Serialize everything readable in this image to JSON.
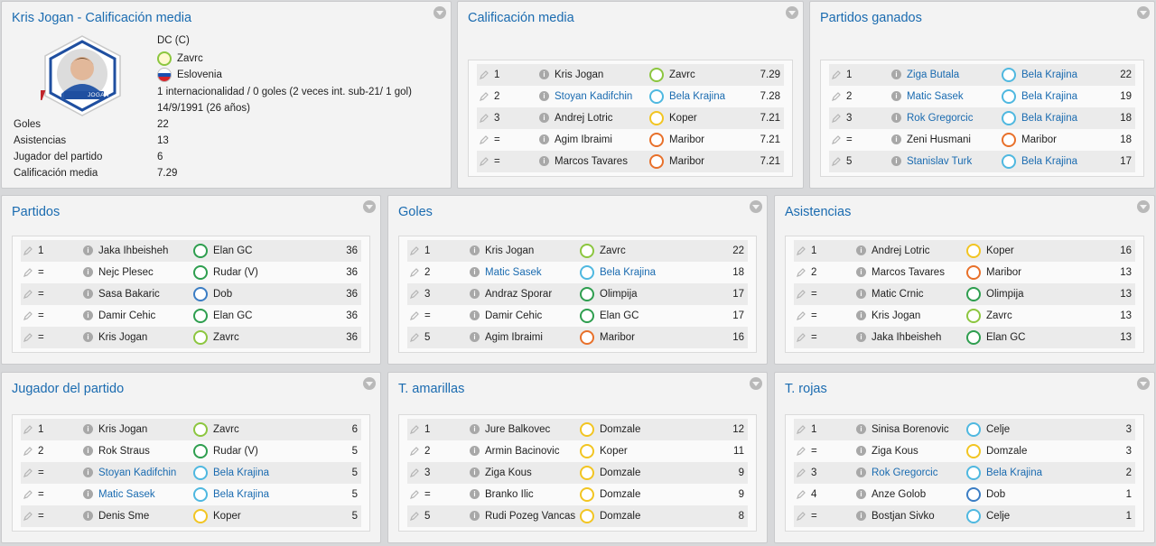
{
  "profile": {
    "title": "Kris Jogan - Calificación media",
    "card_name": "JOGAN",
    "position": "DC (C)",
    "club": "Zavrc",
    "club_color": "#8cc63f",
    "nationality": "Eslovenia",
    "caps": "1 internacionalidad / 0 goles (2 veces int. sub-21/ 1 gol)",
    "birth": "14/9/1991 (26 años)",
    "stats": [
      {
        "label": "Goles",
        "value": "22"
      },
      {
        "label": "Asistencias",
        "value": "13"
      },
      {
        "label": "Jugador del partido",
        "value": "6"
      },
      {
        "label": "Calificación media",
        "value": "7.29"
      }
    ]
  },
  "panels": [
    {
      "title": "Calificación media",
      "rows": [
        {
          "rank": "1",
          "player": "Kris Jogan",
          "club": "Zavrc",
          "value": "7.29",
          "link": false,
          "color": "#8cc63f"
        },
        {
          "rank": "2",
          "player": "Stoyan Kadifchin",
          "club": "Bela Krajina",
          "value": "7.28",
          "link": true,
          "color": "#4fb8e0"
        },
        {
          "rank": "3",
          "player": "Andrej Lotric",
          "club": "Koper",
          "value": "7.21",
          "link": false,
          "color": "#f2c522"
        },
        {
          "rank": "=",
          "player": "Agim Ibraimi",
          "club": "Maribor",
          "value": "7.21",
          "link": false,
          "color": "#e8702a"
        },
        {
          "rank": "=",
          "player": "Marcos Tavares",
          "club": "Maribor",
          "value": "7.21",
          "link": false,
          "color": "#e8702a"
        }
      ]
    },
    {
      "title": "Partidos ganados",
      "rows": [
        {
          "rank": "1",
          "player": "Ziga Butala",
          "club": "Bela Krajina",
          "value": "22",
          "link": true,
          "color": "#4fb8e0"
        },
        {
          "rank": "2",
          "player": "Matic Sasek",
          "club": "Bela Krajina",
          "value": "19",
          "link": true,
          "color": "#4fb8e0"
        },
        {
          "rank": "3",
          "player": "Rok Gregorcic",
          "club": "Bela Krajina",
          "value": "18",
          "link": true,
          "color": "#4fb8e0"
        },
        {
          "rank": "=",
          "player": "Zeni Husmani",
          "club": "Maribor",
          "value": "18",
          "link": false,
          "color": "#e8702a"
        },
        {
          "rank": "5",
          "player": "Stanislav Turk",
          "club": "Bela Krajina",
          "value": "17",
          "link": true,
          "color": "#4fb8e0"
        }
      ]
    },
    {
      "title": "Partidos",
      "rows": [
        {
          "rank": "1",
          "player": "Jaka Ihbeisheh",
          "club": "Elan GC",
          "value": "36",
          "link": false,
          "color": "#2e9e4f"
        },
        {
          "rank": "=",
          "player": "Nejc Plesec",
          "club": "Rudar (V)",
          "value": "36",
          "link": false,
          "color": "#2e9e4f"
        },
        {
          "rank": "=",
          "player": "Sasa Bakaric",
          "club": "Dob",
          "value": "36",
          "link": false,
          "color": "#3b7dc4"
        },
        {
          "rank": "=",
          "player": "Damir Cehic",
          "club": "Elan GC",
          "value": "36",
          "link": false,
          "color": "#2e9e4f"
        },
        {
          "rank": "=",
          "player": "Kris Jogan",
          "club": "Zavrc",
          "value": "36",
          "link": false,
          "color": "#8cc63f"
        }
      ]
    },
    {
      "title": "Goles",
      "rows": [
        {
          "rank": "1",
          "player": "Kris Jogan",
          "club": "Zavrc",
          "value": "22",
          "link": false,
          "color": "#8cc63f"
        },
        {
          "rank": "2",
          "player": "Matic Sasek",
          "club": "Bela Krajina",
          "value": "18",
          "link": true,
          "color": "#4fb8e0"
        },
        {
          "rank": "3",
          "player": "Andraz Sporar",
          "club": "Olimpija",
          "value": "17",
          "link": false,
          "color": "#2e9e4f"
        },
        {
          "rank": "=",
          "player": "Damir Cehic",
          "club": "Elan GC",
          "value": "17",
          "link": false,
          "color": "#2e9e4f"
        },
        {
          "rank": "5",
          "player": "Agim Ibraimi",
          "club": "Maribor",
          "value": "16",
          "link": false,
          "color": "#e8702a"
        }
      ]
    },
    {
      "title": "Asistencias",
      "rows": [
        {
          "rank": "1",
          "player": "Andrej Lotric",
          "club": "Koper",
          "value": "16",
          "link": false,
          "color": "#f2c522"
        },
        {
          "rank": "2",
          "player": "Marcos Tavares",
          "club": "Maribor",
          "value": "13",
          "link": false,
          "color": "#e8702a"
        },
        {
          "rank": "=",
          "player": "Matic Crnic",
          "club": "Olimpija",
          "value": "13",
          "link": false,
          "color": "#2e9e4f"
        },
        {
          "rank": "=",
          "player": "Kris Jogan",
          "club": "Zavrc",
          "value": "13",
          "link": false,
          "color": "#8cc63f"
        },
        {
          "rank": "=",
          "player": "Jaka Ihbeisheh",
          "club": "Elan GC",
          "value": "13",
          "link": false,
          "color": "#2e9e4f"
        }
      ]
    },
    {
      "title": "Jugador del partido",
      "rows": [
        {
          "rank": "1",
          "player": "Kris Jogan",
          "club": "Zavrc",
          "value": "6",
          "link": false,
          "color": "#8cc63f"
        },
        {
          "rank": "2",
          "player": "Rok Straus",
          "club": "Rudar (V)",
          "value": "5",
          "link": false,
          "color": "#2e9e4f"
        },
        {
          "rank": "=",
          "player": "Stoyan Kadifchin",
          "club": "Bela Krajina",
          "value": "5",
          "link": true,
          "color": "#4fb8e0"
        },
        {
          "rank": "=",
          "player": "Matic Sasek",
          "club": "Bela Krajina",
          "value": "5",
          "link": true,
          "color": "#4fb8e0"
        },
        {
          "rank": "=",
          "player": "Denis Sme",
          "club": "Koper",
          "value": "5",
          "link": false,
          "color": "#f2c522"
        }
      ]
    },
    {
      "title": "T. amarillas",
      "rows": [
        {
          "rank": "1",
          "player": "Jure Balkovec",
          "club": "Domzale",
          "value": "12",
          "link": false,
          "color": "#f2c522"
        },
        {
          "rank": "2",
          "player": "Armin Bacinovic",
          "club": "Koper",
          "value": "11",
          "link": false,
          "color": "#f2c522"
        },
        {
          "rank": "3",
          "player": "Ziga Kous",
          "club": "Domzale",
          "value": "9",
          "link": false,
          "color": "#f2c522"
        },
        {
          "rank": "=",
          "player": "Branko Ilic",
          "club": "Domzale",
          "value": "9",
          "link": false,
          "color": "#f2c522"
        },
        {
          "rank": "5",
          "player": "Rudi Pozeg Vancas",
          "club": "Domzale",
          "value": "8",
          "link": false,
          "color": "#f2c522"
        }
      ]
    },
    {
      "title": "T. rojas",
      "rows": [
        {
          "rank": "1",
          "player": "Sinisa Borenovic",
          "club": "Celje",
          "value": "3",
          "link": false,
          "color": "#4fb8e0"
        },
        {
          "rank": "=",
          "player": "Ziga Kous",
          "club": "Domzale",
          "value": "3",
          "link": false,
          "color": "#f2c522"
        },
        {
          "rank": "3",
          "player": "Rok Gregorcic",
          "club": "Bela Krajina",
          "value": "2",
          "link": true,
          "color": "#4fb8e0"
        },
        {
          "rank": "4",
          "player": "Anze Golob",
          "club": "Dob",
          "value": "1",
          "link": false,
          "color": "#3b7dc4"
        },
        {
          "rank": "=",
          "player": "Bostjan Sivko",
          "club": "Celje",
          "value": "1",
          "link": false,
          "color": "#4fb8e0"
        }
      ]
    }
  ]
}
